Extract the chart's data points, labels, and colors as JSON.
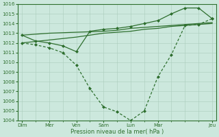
{
  "background_color": "#cce8dd",
  "grid_color": "#aaccbb",
  "line_color": "#2d6e2d",
  "marker_color": "#2d6e2d",
  "xlabel": "Pression niveau de la mer( hPa )",
  "ylim": [
    1004,
    1016
  ],
  "yticks": [
    1004,
    1005,
    1006,
    1007,
    1008,
    1009,
    1010,
    1011,
    1012,
    1013,
    1014,
    1015,
    1016
  ],
  "day_labels": [
    "Dim",
    "Mer",
    "Ven",
    "Sam",
    "Lun",
    "Mar",
    "Jeu"
  ],
  "day_positions": [
    0,
    2,
    4,
    6,
    8,
    10,
    14
  ],
  "flat1_x": [
    0,
    2,
    4,
    6,
    7,
    8,
    9,
    10,
    11,
    12,
    13,
    14
  ],
  "flat1_y": [
    1012.0,
    1012.3,
    1012.6,
    1013.0,
    1013.1,
    1013.2,
    1013.4,
    1013.5,
    1013.7,
    1013.8,
    1013.9,
    1014.0
  ],
  "flat2_x": [
    0,
    2,
    4,
    6,
    7,
    8,
    9,
    10,
    11,
    12,
    13,
    14
  ],
  "flat2_y": [
    1012.8,
    1013.0,
    1013.1,
    1013.2,
    1013.3,
    1013.5,
    1013.6,
    1013.7,
    1013.8,
    1013.9,
    1014.0,
    1014.1
  ],
  "shallow_x": [
    0,
    1,
    2,
    3,
    4,
    5,
    6,
    7,
    8,
    9,
    10,
    11,
    12,
    13,
    14
  ],
  "shallow_y": [
    1012.8,
    1012.2,
    1012.0,
    1011.7,
    1011.1,
    1013.2,
    1013.4,
    1013.5,
    1013.7,
    1014.0,
    1014.3,
    1015.0,
    1015.6,
    1015.6,
    1014.5
  ],
  "deep_x": [
    0,
    1,
    2,
    3,
    4,
    5,
    6,
    7,
    8,
    9,
    10,
    11,
    12,
    13,
    14
  ],
  "deep_y": [
    1012.0,
    1011.8,
    1011.5,
    1011.0,
    1009.7,
    1007.3,
    1005.4,
    1004.9,
    1004.0,
    1005.0,
    1008.5,
    1010.8,
    1013.8,
    1013.9,
    1014.5
  ]
}
